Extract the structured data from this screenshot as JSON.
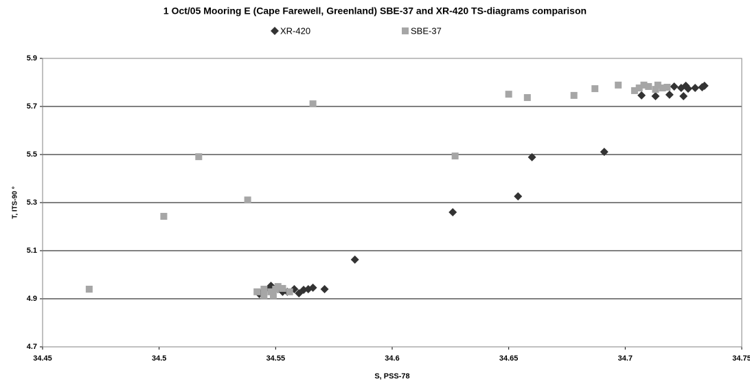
{
  "chart_data": {
    "type": "scatter",
    "title": "1 Oct/05 Mooring E (Cape Farewell, Greenland) SBE-37 and XR-420 TS-diagrams comparison",
    "x_label": "S, PSS-78",
    "y_label": "T, ITS-90 °",
    "xlim": [
      34.45,
      34.75
    ],
    "xticks": [
      34.45,
      34.5,
      34.55,
      34.6,
      34.65,
      34.7,
      34.75
    ],
    "ylim": [
      4.7,
      5.9
    ],
    "yticks": [
      4.7,
      4.9,
      5.1,
      5.3,
      5.5,
      5.7,
      5.9
    ],
    "grid": true,
    "legend": "top",
    "series": [
      {
        "name": "XR-420",
        "color": "#333333",
        "marker": "diamond",
        "x": [
          34.543,
          34.544,
          34.547,
          34.548,
          34.551,
          34.553,
          34.555,
          34.558,
          34.56,
          34.562,
          34.564,
          34.566,
          34.571,
          34.584,
          34.626,
          34.654,
          34.66,
          34.691,
          34.707,
          34.713,
          34.719,
          34.721,
          34.724,
          34.725,
          34.726,
          34.727,
          34.73,
          34.733,
          34.734
        ],
        "values": [
          4.92,
          4.926,
          4.943,
          4.954,
          4.94,
          4.929,
          4.929,
          4.94,
          4.923,
          4.937,
          4.94,
          4.946,
          4.94,
          5.063,
          5.26,
          5.326,
          5.489,
          5.511,
          5.746,
          5.743,
          5.749,
          5.783,
          5.777,
          5.743,
          5.786,
          5.774,
          5.777,
          5.78,
          5.786
        ]
      },
      {
        "name": "SBE-37",
        "color": "#a6a6a6",
        "marker": "square",
        "x": [
          34.47,
          34.502,
          34.517,
          34.538,
          34.566,
          34.627,
          34.65,
          34.658,
          34.678,
          34.687,
          34.697,
          34.704,
          34.706,
          34.708,
          34.71,
          34.713,
          34.714,
          34.716,
          34.718,
          34.542,
          34.545,
          34.545,
          34.548,
          34.549,
          34.55,
          34.551,
          34.553,
          34.556
        ],
        "values": [
          4.94,
          5.243,
          5.491,
          5.311,
          5.711,
          5.494,
          5.751,
          5.737,
          5.746,
          5.774,
          5.789,
          5.766,
          5.777,
          5.789,
          5.783,
          5.771,
          5.789,
          5.777,
          5.78,
          4.929,
          4.914,
          4.94,
          4.929,
          4.914,
          4.94,
          4.951,
          4.943,
          4.929
        ]
      }
    ]
  }
}
